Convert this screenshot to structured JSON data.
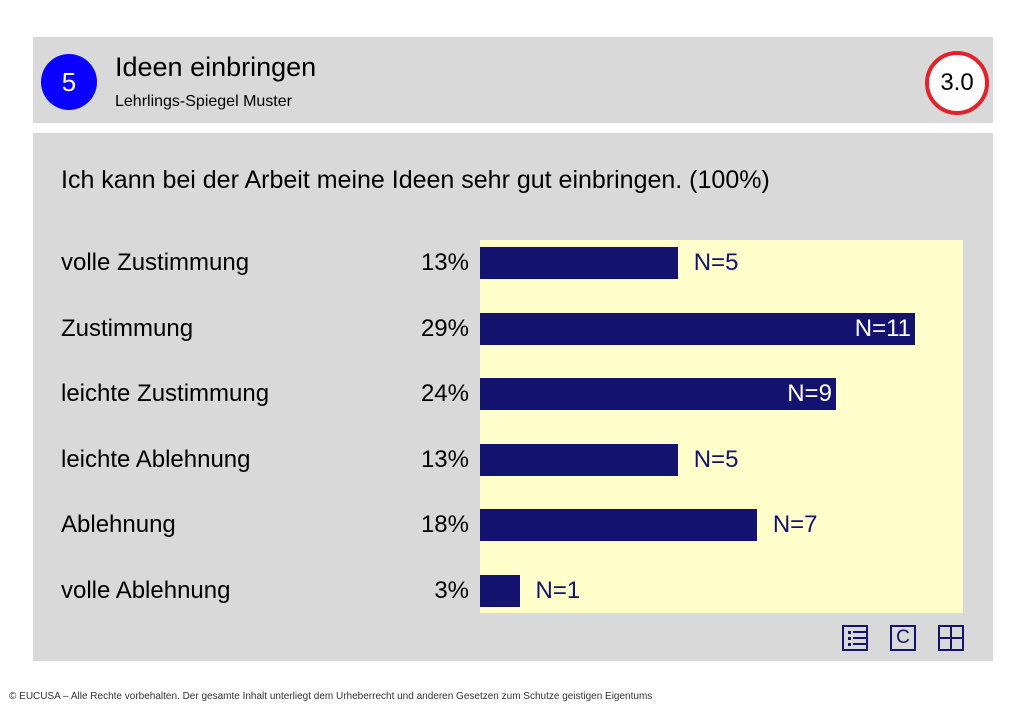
{
  "header": {
    "number": "5",
    "title": "Ideen einbringen",
    "subtitle": "Lehrlings-Spiegel Muster",
    "score": "3.0"
  },
  "question": "Ich kann bei der Arbeit meine Ideen sehr gut einbringen. (100%)",
  "chart_data": {
    "type": "bar",
    "orientation": "horizontal",
    "categories": [
      "volle Zustimmung",
      "Zustimmung",
      "leichte Zustimmung",
      "leichte Ablehnung",
      "Ablehnung",
      "volle Ablehnung"
    ],
    "percent_labels": [
      "13%",
      "29%",
      "24%",
      "13%",
      "18%",
      "3%"
    ],
    "values": [
      5,
      11,
      9,
      5,
      7,
      1
    ],
    "n_labels": [
      "N=5",
      "N=11",
      "N=9",
      "N=5",
      "N=7",
      "N=1"
    ],
    "bar_color": "#13126e",
    "plot_background": "#ffffcc",
    "xlim": [
      0,
      12
    ],
    "grid": false,
    "legend": "none"
  },
  "icons": [
    "list-icon",
    "c-icon",
    "grid-icon"
  ],
  "icon_c_text": "C",
  "footer": "© EUCUSA – Alle Rechte vorbehalten. Der gesamte Inhalt unterliegt dem Urheberrecht und anderen Gesetzen zum Schutze geistigen Eigentums"
}
